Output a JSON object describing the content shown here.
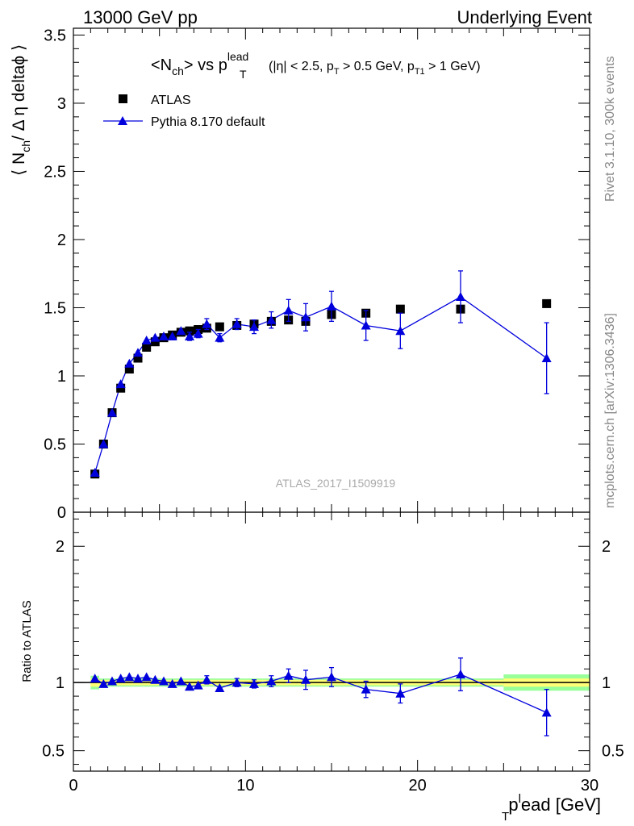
{
  "header": {
    "left": "13000 GeV pp",
    "right": "Underlying Event"
  },
  "side_labels": {
    "rivet": "Rivet 3.1.10,  300k events",
    "mcplots": "mcplots.cern.ch [arXiv:1306.3436]"
  },
  "watermark": "ATLAS_2017_I1509919",
  "colors": {
    "data": "#000000",
    "mc": "#0000dd",
    "band_inner": "#ffff77",
    "band_outer": "#99ff99"
  },
  "chart_data": [
    {
      "type": "scatter",
      "panel": "main",
      "title": {
        "main": "<N",
        "main_sub": "ch",
        "main_mid": "> vs p",
        "main_sup": "lead",
        "main_sub2": "T",
        "cuts_a": "(|η| < 2.5, p",
        "cuts_a_sub": "T",
        "cuts_b": " > 0.5 GeV, p",
        "cuts_b_sub": "T1",
        "cuts_c": " > 1 GeV)"
      },
      "ylabel": {
        "left": "⟨ N",
        "sub": "ch",
        "right": "/ Δ η deltaϕ ⟩"
      },
      "xlim": [
        0,
        30
      ],
      "ylim": [
        0,
        3.55
      ],
      "yticks": [
        "0",
        "0.5",
        "1",
        "1.5",
        "2",
        "2.5",
        "3",
        "3.5"
      ],
      "legend_position": "top-left",
      "series": [
        {
          "name": "ATLAS",
          "marker": "square",
          "x": [
            1.25,
            1.75,
            2.25,
            2.75,
            3.25,
            3.75,
            4.25,
            4.75,
            5.25,
            5.75,
            6.25,
            6.75,
            7.25,
            7.75,
            8.5,
            9.5,
            10.5,
            11.5,
            12.5,
            13.5,
            15.0,
            17.0,
            19.0,
            22.5,
            27.5
          ],
          "y": [
            0.28,
            0.5,
            0.73,
            0.91,
            1.05,
            1.13,
            1.21,
            1.25,
            1.28,
            1.3,
            1.32,
            1.33,
            1.34,
            1.35,
            1.36,
            1.37,
            1.38,
            1.4,
            1.41,
            1.4,
            1.45,
            1.46,
            1.49,
            1.49,
            1.53
          ]
        },
        {
          "name": "Pythia 8.170 default",
          "marker": "triangle",
          "x": [
            1.25,
            1.75,
            2.25,
            2.75,
            3.25,
            3.75,
            4.25,
            4.75,
            5.25,
            5.75,
            6.25,
            6.75,
            7.25,
            7.75,
            8.5,
            9.5,
            10.5,
            11.5,
            12.5,
            13.5,
            15.0,
            17.0,
            19.0,
            22.5,
            27.5
          ],
          "y": [
            0.29,
            0.5,
            0.73,
            0.94,
            1.09,
            1.17,
            1.26,
            1.28,
            1.29,
            1.29,
            1.33,
            1.29,
            1.31,
            1.38,
            1.28,
            1.38,
            1.36,
            1.41,
            1.48,
            1.43,
            1.51,
            1.37,
            1.33,
            1.58,
            1.13
          ],
          "yerr": [
            0.01,
            0.01,
            0.01,
            0.01,
            0.01,
            0.01,
            0.02,
            0.02,
            0.02,
            0.02,
            0.02,
            0.03,
            0.03,
            0.04,
            0.03,
            0.04,
            0.05,
            0.06,
            0.08,
            0.1,
            0.11,
            0.11,
            0.13,
            0.19,
            0.26
          ]
        }
      ]
    },
    {
      "type": "scatter",
      "panel": "ratio",
      "ylabel": "Ratio to ATLAS",
      "xlabel": {
        "main": "p",
        "sub": "T",
        "sup": "l",
        "rest": "ead [GeV]"
      },
      "xlim": [
        0,
        30
      ],
      "ylim": [
        0.35,
        2.25
      ],
      "xticks": [
        "0",
        "10",
        "20",
        "30"
      ],
      "yticks": [
        "0.5",
        "1",
        "2"
      ],
      "reference": 1,
      "band": {
        "x_edges": [
          1.0,
          1.5,
          2.0,
          2.5,
          3.0,
          3.5,
          4.0,
          4.5,
          5.0,
          5.5,
          6.0,
          6.5,
          7.0,
          7.5,
          8.0,
          9.0,
          10.0,
          11.0,
          12.0,
          13.0,
          14.0,
          16.0,
          18.0,
          20.0,
          25.0,
          30.0
        ],
        "inner": [
          0.03,
          0.02,
          0.02,
          0.02,
          0.02,
          0.02,
          0.02,
          0.02,
          0.02,
          0.02,
          0.02,
          0.02,
          0.02,
          0.02,
          0.02,
          0.02,
          0.02,
          0.02,
          0.02,
          0.02,
          0.02,
          0.02,
          0.02,
          0.02,
          0.03
        ],
        "outer": [
          0.05,
          0.03,
          0.03,
          0.03,
          0.03,
          0.03,
          0.03,
          0.03,
          0.03,
          0.03,
          0.03,
          0.03,
          0.03,
          0.03,
          0.03,
          0.03,
          0.03,
          0.03,
          0.03,
          0.03,
          0.03,
          0.03,
          0.03,
          0.03,
          0.06
        ]
      },
      "series": [
        {
          "name": "Pythia 8.170 default",
          "x": [
            1.25,
            1.75,
            2.25,
            2.75,
            3.25,
            3.75,
            4.25,
            4.75,
            5.25,
            5.75,
            6.25,
            6.75,
            7.25,
            7.75,
            8.5,
            9.5,
            10.5,
            11.5,
            12.5,
            13.5,
            15.0,
            17.0,
            19.0,
            22.5,
            27.5
          ],
          "y": [
            1.03,
            0.99,
            1.01,
            1.03,
            1.04,
            1.03,
            1.04,
            1.02,
            1.01,
            0.99,
            1.01,
            0.97,
            0.98,
            1.02,
            0.96,
            1.0,
            0.99,
            1.01,
            1.05,
            1.02,
            1.04,
            0.95,
            0.92,
            1.06,
            0.78
          ],
          "yerr": [
            0.01,
            0.01,
            0.01,
            0.01,
            0.01,
            0.01,
            0.01,
            0.01,
            0.01,
            0.01,
            0.01,
            0.02,
            0.02,
            0.03,
            0.02,
            0.03,
            0.03,
            0.04,
            0.05,
            0.07,
            0.07,
            0.06,
            0.07,
            0.12,
            0.17
          ]
        }
      ]
    }
  ]
}
